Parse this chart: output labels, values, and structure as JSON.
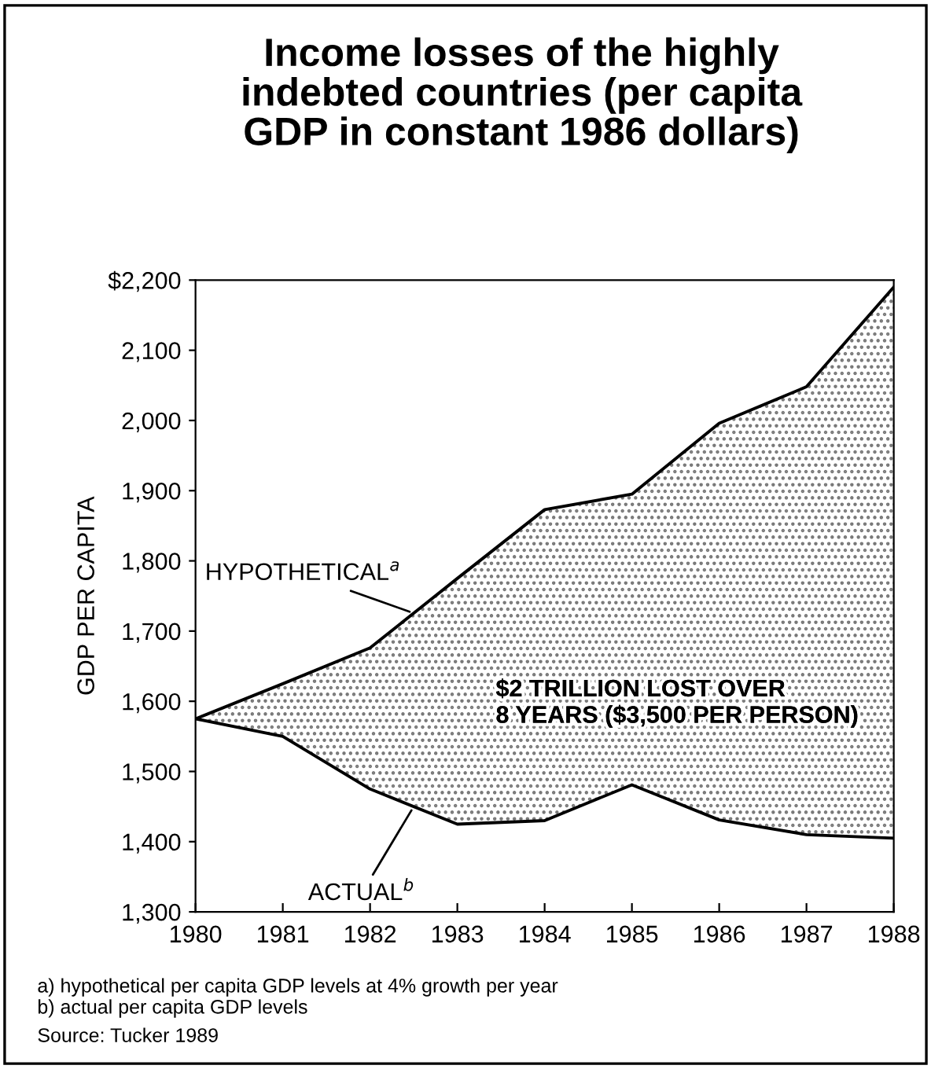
{
  "chart_data": {
    "type": "line",
    "title": "Income losses of the highly\nindebted countries (per capita\nGDP in constant 1986 dollars)",
    "ylabel": "GDP PER CAPITA",
    "x": [
      1980,
      1981,
      1982,
      1983,
      1984,
      1985,
      1986,
      1987,
      1988
    ],
    "series": [
      {
        "name": "HYPOTHETICAL$^{a}$",
        "color": "#000000",
        "values": [
          1575,
          1625,
          1676,
          1775,
          1873,
          1895,
          1996,
          2048,
          2190
        ],
        "lower": [
          1575,
          1550,
          1475,
          1425,
          1430,
          1481,
          1431,
          1410,
          1405
        ],
        "upper": [
          1575,
          1625,
          1676,
          1775,
          1873,
          1895,
          1996,
          2048,
          2190
        ]
      },
      {
        "name": "ACTUAL$^{b}$",
        "color": "#000000",
        "values": [
          1575,
          1550,
          1475,
          1425,
          1430,
          1481,
          1431,
          1410,
          1405
        ]
      }
    ],
    "xlim": [
      1980,
      1988
    ],
    "xticks": [
      1980,
      1981,
      1982,
      1983,
      1984,
      1985,
      1986,
      1987,
      1988
    ],
    "ylim": [
      1300,
      2200
    ],
    "yticks": [
      {
        "value": 1300,
        "label": "1,300"
      },
      {
        "value": 1400,
        "label": "1,400"
      },
      {
        "value": 1500,
        "label": "1,500"
      },
      {
        "value": 1600,
        "label": "1,600"
      },
      {
        "value": 1700,
        "label": "1,700"
      },
      {
        "value": 1800,
        "label": "1,800"
      },
      {
        "value": 1900,
        "label": "1,900"
      },
      {
        "value": 2000,
        "label": "2,000"
      },
      {
        "value": 2100,
        "label": "2,100"
      },
      {
        "value": 2200,
        "label": "$2,200"
      }
    ],
    "grid": false,
    "legend": false,
    "marker": "none",
    "line_style": "solid",
    "annotations": [
      "$2 TRILLION LOST OVER\n8 YEARS ($3,500 PER PERSON)",
      "a) hypothetical per capita GDP levels at 4% growth per year\nb) actual per capita GDP levels",
      "Source: Tucker 1989"
    ]
  }
}
